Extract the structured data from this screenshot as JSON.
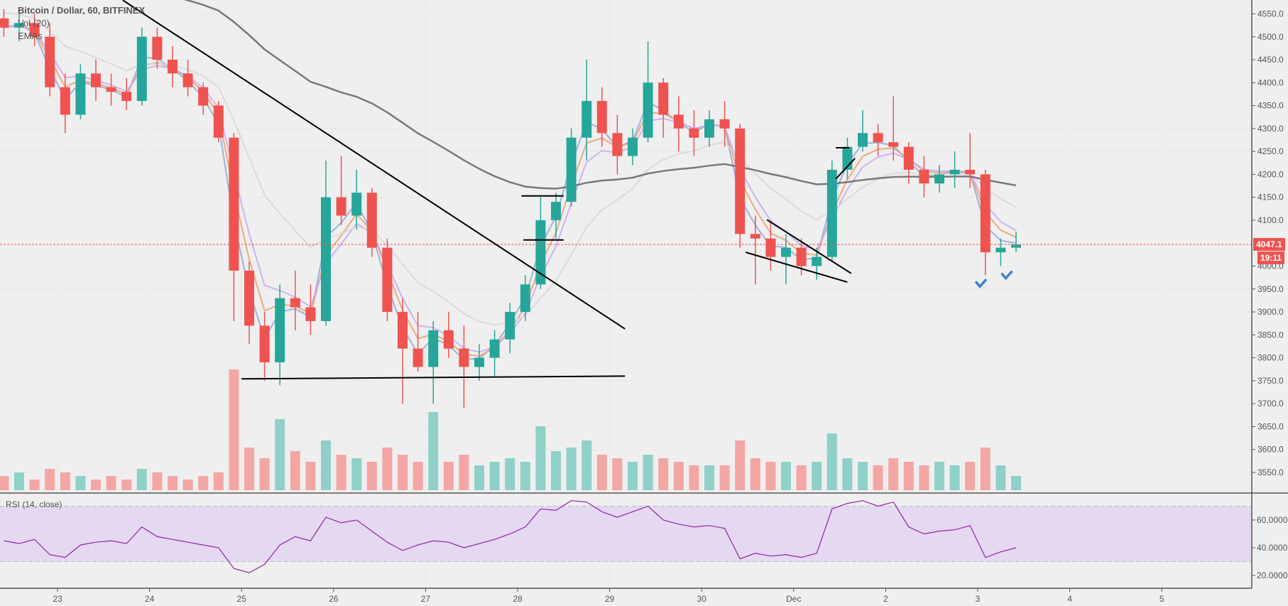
{
  "legend": {
    "symbol": "Bitcoin / Dollar, 60, BITFINEX",
    "volume": "Vol (20)",
    "emas": "EMAs"
  },
  "rsi_label": "RSI (14, close)",
  "last_price": "4047.1",
  "countdown": "19:11",
  "colors": {
    "up": "#26a69a",
    "down": "#ef5350",
    "volume_up": "#8fd1c9",
    "volume_down": "#f4a6a4",
    "rsi_line": "#8e24aa",
    "rsi_band": "#e5d8f1",
    "ema_lines": [
      "#8fa9d6",
      "#e8a06a",
      "#c9a7f0",
      "#d6d6d6",
      "#6b6b6b"
    ],
    "trendline": "#000000",
    "check_mark": "#3d85c6"
  },
  "chart_data": {
    "type": "candlestick",
    "price_axis": {
      "ticks": [
        "4550.0",
        "4500.0",
        "4450.0",
        "4400.0",
        "4350.0",
        "4300.0",
        "4250.0",
        "4200.0",
        "4150.0",
        "4100.0",
        "4000.0",
        "3950.0",
        "3900.0",
        "3850.0",
        "3800.0",
        "3750.0",
        "3700.0",
        "3650.0",
        "3600.0",
        "3550.0"
      ],
      "range": [
        3510,
        4580
      ]
    },
    "date_axis": {
      "ticks": [
        {
          "label": "23",
          "time": "Nov 23 00:00"
        },
        {
          "label": "24",
          "time": "Nov 24 00:00"
        },
        {
          "label": "25",
          "time": "Nov 25 00:00"
        },
        {
          "label": "26",
          "time": "Nov 26 00:00"
        },
        {
          "label": "27",
          "time": "Nov 27 00:00"
        },
        {
          "label": "28",
          "time": "Nov 28 00:00"
        },
        {
          "label": "29",
          "time": "Nov 29 00:00"
        },
        {
          "label": "30",
          "time": "Nov 30 00:00"
        },
        {
          "label": "Dec",
          "time": "Dec 1 00:00"
        },
        {
          "label": "2",
          "time": "Dec 2 00:00"
        },
        {
          "label": "3",
          "time": "Dec 3 00:00"
        },
        {
          "label": "4",
          "time": "Dec 4 00:00"
        },
        {
          "label": "5",
          "time": "Dec 5 00:00"
        }
      ]
    },
    "last_price_line": 4047.1,
    "candles_note_columns": [
      "time",
      "open",
      "high",
      "low",
      "close",
      "volume",
      "rsi"
    ],
    "candles": [
      [
        "Nov 22 08:00",
        4540,
        4560,
        4500,
        4520,
        20,
        45
      ],
      [
        "Nov 22 12:00",
        4520,
        4560,
        4490,
        4530,
        25,
        43
      ],
      [
        "Nov 22 16:00",
        4530,
        4550,
        4480,
        4500,
        15,
        46
      ],
      [
        "Nov 22 20:00",
        4500,
        4530,
        4370,
        4390,
        30,
        35
      ],
      [
        "Nov 23 00:00",
        4390,
        4420,
        4290,
        4330,
        25,
        33
      ],
      [
        "Nov 23 04:00",
        4330,
        4440,
        4320,
        4420,
        20,
        42
      ],
      [
        "Nov 23 08:00",
        4420,
        4450,
        4360,
        4390,
        15,
        44
      ],
      [
        "Nov 23 12:00",
        4390,
        4420,
        4350,
        4380,
        20,
        45
      ],
      [
        "Nov 23 16:00",
        4380,
        4410,
        4340,
        4360,
        15,
        43
      ],
      [
        "Nov 23 20:00",
        4360,
        4520,
        4350,
        4500,
        30,
        55
      ],
      [
        "Nov 24 00:00",
        4500,
        4520,
        4430,
        4450,
        25,
        48
      ],
      [
        "Nov 24 04:00",
        4450,
        4480,
        4390,
        4420,
        20,
        46
      ],
      [
        "Nov 24 08:00",
        4420,
        4450,
        4370,
        4390,
        15,
        44
      ],
      [
        "Nov 24 12:00",
        4390,
        4400,
        4330,
        4350,
        20,
        42
      ],
      [
        "Nov 24 16:00",
        4350,
        4360,
        4270,
        4280,
        25,
        40
      ],
      [
        "Nov 24 20:00",
        4280,
        4290,
        3880,
        3990,
        170,
        25
      ],
      [
        "Nov 25 00:00",
        3990,
        4010,
        3830,
        3870,
        60,
        22
      ],
      [
        "Nov 25 04:00",
        3870,
        3900,
        3750,
        3790,
        45,
        28
      ],
      [
        "Nov 25 08:00",
        3790,
        3960,
        3740,
        3930,
        100,
        42
      ],
      [
        "Nov 25 12:00",
        3930,
        3990,
        3860,
        3910,
        55,
        48
      ],
      [
        "Nov 25 16:00",
        3910,
        3960,
        3850,
        3880,
        40,
        45
      ],
      [
        "Nov 25 20:00",
        3880,
        4230,
        3870,
        4150,
        70,
        62
      ],
      [
        "Nov 26 00:00",
        4150,
        4240,
        4090,
        4110,
        50,
        58
      ],
      [
        "Nov 26 04:00",
        4110,
        4210,
        4080,
        4160,
        45,
        60
      ],
      [
        "Nov 26 08:00",
        4160,
        4170,
        4020,
        4040,
        40,
        52
      ],
      [
        "Nov 26 12:00",
        4040,
        4060,
        3880,
        3900,
        60,
        44
      ],
      [
        "Nov 26 16:00",
        3900,
        3930,
        3700,
        3820,
        50,
        38
      ],
      [
        "Nov 26 20:00",
        3820,
        3900,
        3770,
        3780,
        40,
        42
      ],
      [
        "Nov 27 00:00",
        3780,
        3880,
        3700,
        3860,
        110,
        45
      ],
      [
        "Nov 27 04:00",
        3860,
        3900,
        3800,
        3820,
        40,
        44
      ],
      [
        "Nov 27 08:00",
        3820,
        3870,
        3690,
        3780,
        50,
        40
      ],
      [
        "Nov 27 12:00",
        3780,
        3830,
        3750,
        3800,
        35,
        43
      ],
      [
        "Nov 27 16:00",
        3800,
        3860,
        3760,
        3840,
        40,
        46
      ],
      [
        "Nov 27 20:00",
        3840,
        3920,
        3810,
        3900,
        45,
        50
      ],
      [
        "Nov 28 00:00",
        3900,
        3980,
        3880,
        3960,
        40,
        55
      ],
      [
        "Nov 28 04:00",
        3960,
        4150,
        3950,
        4100,
        90,
        68
      ],
      [
        "Nov 28 08:00",
        4100,
        4160,
        4060,
        4140,
        55,
        67
      ],
      [
        "Nov 28 12:00",
        4140,
        4300,
        4130,
        4280,
        60,
        74
      ],
      [
        "Nov 28 16:00",
        4280,
        4450,
        4230,
        4360,
        70,
        73
      ],
      [
        "Nov 28 20:00",
        4360,
        4390,
        4260,
        4290,
        50,
        66
      ],
      [
        "Nov 29 00:00",
        4290,
        4330,
        4200,
        4240,
        45,
        62
      ],
      [
        "Nov 29 04:00",
        4240,
        4300,
        4220,
        4280,
        40,
        66
      ],
      [
        "Nov 29 08:00",
        4280,
        4490,
        4270,
        4400,
        50,
        70
      ],
      [
        "Nov 29 12:00",
        4400,
        4410,
        4280,
        4330,
        45,
        60
      ],
      [
        "Nov 29 16:00",
        4330,
        4370,
        4250,
        4300,
        40,
        57
      ],
      [
        "Nov 29 20:00",
        4300,
        4340,
        4240,
        4280,
        35,
        55
      ],
      [
        "Nov 30 00:00",
        4280,
        4340,
        4260,
        4320,
        35,
        56
      ],
      [
        "Nov 30 04:00",
        4320,
        4360,
        4260,
        4300,
        35,
        54
      ],
      [
        "Nov 30 08:00",
        4300,
        4310,
        4040,
        4070,
        70,
        32
      ],
      [
        "Nov 30 12:00",
        4070,
        4110,
        3960,
        4060,
        45,
        36
      ],
      [
        "Nov 30 16:00",
        4060,
        4100,
        3990,
        4020,
        40,
        34
      ],
      [
        "Nov 30 20:00",
        4020,
        4070,
        3960,
        4040,
        40,
        35
      ],
      [
        "Dec 1 00:00",
        4040,
        4060,
        3980,
        4000,
        35,
        33
      ],
      [
        "Dec 1 04:00",
        4000,
        4040,
        3970,
        4020,
        40,
        36
      ],
      [
        "Dec 1 08:00",
        4020,
        4230,
        4010,
        4210,
        80,
        68
      ],
      [
        "Dec 1 12:00",
        4210,
        4280,
        4190,
        4260,
        45,
        72
      ],
      [
        "Dec 1 16:00",
        4260,
        4340,
        4250,
        4290,
        40,
        74
      ],
      [
        "Dec 1 20:00",
        4290,
        4310,
        4240,
        4270,
        35,
        70
      ],
      [
        "Dec 2 00:00",
        4270,
        4370,
        4230,
        4260,
        45,
        73
      ],
      [
        "Dec 2 04:00",
        4260,
        4270,
        4180,
        4210,
        40,
        55
      ],
      [
        "Dec 2 08:00",
        4210,
        4240,
        4150,
        4180,
        35,
        50
      ],
      [
        "Dec 2 12:00",
        4180,
        4220,
        4160,
        4200,
        40,
        52
      ],
      [
        "Dec 2 16:00",
        4200,
        4250,
        4170,
        4210,
        35,
        53
      ],
      [
        "Dec 2 20:00",
        4210,
        4290,
        4170,
        4200,
        40,
        56
      ],
      [
        "Dec 3 00:00",
        4200,
        4210,
        3980,
        4030,
        60,
        33
      ],
      [
        "Dec 3 04:00",
        4030,
        4060,
        4000,
        4040,
        35,
        37
      ],
      [
        "Dec 3 08:00",
        4040,
        4075,
        4030,
        4047.1,
        20,
        40
      ]
    ],
    "rsi_axis": {
      "ticks": [
        "60.0000",
        "40.0000",
        "20.0000"
      ],
      "band": [
        30,
        70
      ]
    },
    "drawings": [
      {
        "type": "trendline",
        "from": [
          "Nov 23 17:00",
          4580
        ],
        "to": [
          "Nov 29 04:00",
          3863
        ]
      },
      {
        "type": "trendline",
        "from": [
          "Nov 25 00:00",
          3754
        ],
        "to": [
          "Nov 29 04:00",
          3760
        ]
      },
      {
        "type": "trendline",
        "from": [
          "Nov 28 01:00",
          4153
        ],
        "to": [
          "Nov 28 12:00",
          4153
        ]
      },
      {
        "type": "trendline",
        "from": [
          "Nov 28 01:30",
          4057
        ],
        "to": [
          "Nov 28 12:00",
          4057
        ]
      },
      {
        "type": "trendline",
        "from": [
          "Nov 30 17:00",
          4101
        ],
        "to": [
          "Dec 1 15:00",
          3984
        ]
      },
      {
        "type": "trendline",
        "from": [
          "Nov 30 11:30",
          4030
        ],
        "to": [
          "Dec 1 14:00",
          3965
        ]
      },
      {
        "type": "trendline",
        "from": [
          "Dec 1 11:00",
          4190
        ],
        "to": [
          "Dec 1 16:00",
          4235
        ]
      },
      {
        "type": "trendline",
        "from": [
          "Dec 1 11:00",
          4258
        ],
        "to": [
          "Dec 1 14:30",
          4258
        ]
      }
    ],
    "check_marks": [
      [
        "Dec 3 00:45",
        3960
      ],
      [
        "Dec 3 07:30",
        3978
      ]
    ]
  }
}
